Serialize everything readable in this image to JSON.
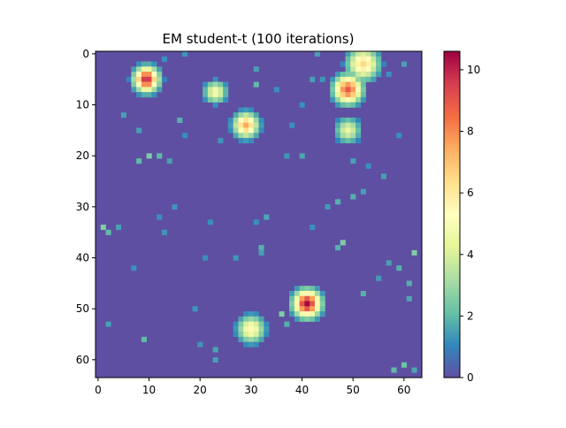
{
  "chart_data": {
    "type": "heatmap",
    "title": "EM student-t (100 iterations)",
    "xlabel": "",
    "ylabel": "",
    "grid_size": [
      64,
      64
    ],
    "xlim": [
      -0.5,
      63.5
    ],
    "ylim": [
      63.5,
      -0.5
    ],
    "x_ticks": [
      0,
      10,
      20,
      30,
      40,
      50,
      60
    ],
    "y_ticks": [
      0,
      10,
      20,
      30,
      40,
      50,
      60
    ],
    "colormap": "Spectral_r",
    "color_range": [
      0,
      10.6
    ],
    "colorbar_ticks": [
      0,
      2,
      4,
      6,
      8,
      10
    ],
    "background_value": 0,
    "blobs": [
      {
        "x": 9.5,
        "y": 5,
        "peak": 10.0,
        "radius": 2.2
      },
      {
        "x": 23,
        "y": 7.5,
        "peak": 5.0,
        "radius": 2.0
      },
      {
        "x": 29,
        "y": 14,
        "peak": 7.5,
        "radius": 2.2
      },
      {
        "x": 49,
        "y": 7,
        "peak": 9.0,
        "radius": 2.5
      },
      {
        "x": 52,
        "y": 2,
        "peak": 6.5,
        "radius": 2.8
      },
      {
        "x": 49,
        "y": 15,
        "peak": 4.5,
        "radius": 2.2
      },
      {
        "x": 41,
        "y": 49,
        "peak": 10.5,
        "radius": 2.4
      },
      {
        "x": 30,
        "y": 54,
        "peak": 5.5,
        "radius": 2.4
      }
    ],
    "scatter_pixels": [
      {
        "x": 8,
        "y": 21,
        "v": 2.0
      },
      {
        "x": 10,
        "y": 20,
        "v": 2.5
      },
      {
        "x": 12,
        "y": 20,
        "v": 2.0
      },
      {
        "x": 14,
        "y": 21,
        "v": 1.5
      },
      {
        "x": 5,
        "y": 12,
        "v": 1.5
      },
      {
        "x": 8,
        "y": 15,
        "v": 1.5
      },
      {
        "x": 1,
        "y": 34,
        "v": 2.5
      },
      {
        "x": 2,
        "y": 35,
        "v": 2.0
      },
      {
        "x": 4,
        "y": 34,
        "v": 1.5
      },
      {
        "x": 17,
        "y": 16,
        "v": 1.2
      },
      {
        "x": 16,
        "y": 13,
        "v": 1.8
      },
      {
        "x": 24,
        "y": 17,
        "v": 1.3
      },
      {
        "x": 31,
        "y": 6,
        "v": 2.0
      },
      {
        "x": 31,
        "y": 3,
        "v": 1.5
      },
      {
        "x": 35,
        "y": 7,
        "v": 1.2
      },
      {
        "x": 42,
        "y": 5,
        "v": 1.5
      },
      {
        "x": 44,
        "y": 5,
        "v": 1.3
      },
      {
        "x": 40,
        "y": 10,
        "v": 1.2
      },
      {
        "x": 38,
        "y": 14,
        "v": 1.2
      },
      {
        "x": 37,
        "y": 20,
        "v": 1.3
      },
      {
        "x": 40,
        "y": 20,
        "v": 1.6
      },
      {
        "x": 50,
        "y": 21,
        "v": 1.5
      },
      {
        "x": 53,
        "y": 22,
        "v": 1.2
      },
      {
        "x": 56,
        "y": 24,
        "v": 1.5
      },
      {
        "x": 50,
        "y": 28,
        "v": 1.8
      },
      {
        "x": 52,
        "y": 27,
        "v": 1.5
      },
      {
        "x": 47,
        "y": 29,
        "v": 1.8
      },
      {
        "x": 45,
        "y": 30,
        "v": 1.4
      },
      {
        "x": 33,
        "y": 32,
        "v": 1.6
      },
      {
        "x": 31,
        "y": 33,
        "v": 1.2
      },
      {
        "x": 42,
        "y": 34,
        "v": 1.2
      },
      {
        "x": 48,
        "y": 37,
        "v": 2.5
      },
      {
        "x": 47,
        "y": 38,
        "v": 1.8
      },
      {
        "x": 32,
        "y": 38,
        "v": 1.8
      },
      {
        "x": 32,
        "y": 39,
        "v": 1.5
      },
      {
        "x": 22,
        "y": 33,
        "v": 1.2
      },
      {
        "x": 12,
        "y": 32,
        "v": 1.2
      },
      {
        "x": 15,
        "y": 30,
        "v": 1.3
      },
      {
        "x": 13,
        "y": 35,
        "v": 1.3
      },
      {
        "x": 7,
        "y": 42,
        "v": 1.2
      },
      {
        "x": 21,
        "y": 40,
        "v": 1.2
      },
      {
        "x": 27,
        "y": 40,
        "v": 1.3
      },
      {
        "x": 57,
        "y": 41,
        "v": 1.5
      },
      {
        "x": 59,
        "y": 42,
        "v": 1.8
      },
      {
        "x": 62,
        "y": 39,
        "v": 2.5
      },
      {
        "x": 55,
        "y": 44,
        "v": 1.4
      },
      {
        "x": 61,
        "y": 45,
        "v": 1.8
      },
      {
        "x": 61,
        "y": 48,
        "v": 1.6
      },
      {
        "x": 52,
        "y": 47,
        "v": 1.8
      },
      {
        "x": 36,
        "y": 51,
        "v": 2.5
      },
      {
        "x": 37,
        "y": 53,
        "v": 1.8
      },
      {
        "x": 23,
        "y": 58,
        "v": 1.6
      },
      {
        "x": 23,
        "y": 60,
        "v": 1.5
      },
      {
        "x": 20,
        "y": 57,
        "v": 1.3
      },
      {
        "x": 9,
        "y": 56,
        "v": 2.0
      },
      {
        "x": 2,
        "y": 53,
        "v": 1.5
      },
      {
        "x": 19,
        "y": 50,
        "v": 1.3
      },
      {
        "x": 58,
        "y": 62,
        "v": 2.0
      },
      {
        "x": 60,
        "y": 61,
        "v": 2.2
      },
      {
        "x": 62,
        "y": 62,
        "v": 1.6
      },
      {
        "x": 17,
        "y": 0,
        "v": 1.3
      },
      {
        "x": 13,
        "y": 1,
        "v": 1.2
      },
      {
        "x": 43,
        "y": 0,
        "v": 1.5
      },
      {
        "x": 60,
        "y": 2,
        "v": 1.5
      },
      {
        "x": 57,
        "y": 4,
        "v": 1.2
      },
      {
        "x": 59,
        "y": 16,
        "v": 1.2
      }
    ]
  }
}
